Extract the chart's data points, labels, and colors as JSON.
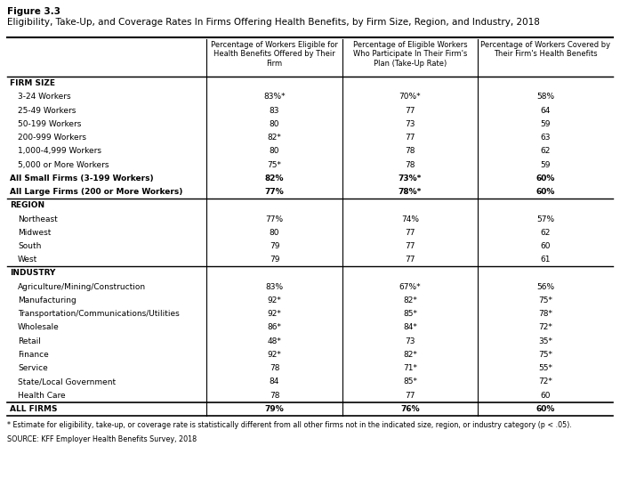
{
  "figure_label": "Figure 3.3",
  "title": "Eligibility, Take-Up, and Coverage Rates In Firms Offering Health Benefits, by Firm Size, Region, and Industry, 2018",
  "col_headers": [
    "Percentage of Workers Eligible for\nHealth Benefits Offered by Their\nFirm",
    "Percentage of Eligible Workers\nWho Participate In Their Firm's\nPlan (Take-Up Rate)",
    "Percentage of Workers Covered by\nTheir Firm's Health Benefits"
  ],
  "sections": [
    {
      "header": "FIRM SIZE",
      "rows": [
        {
          "label": "3-24 Workers",
          "indent": true,
          "bold": false,
          "col1": "83%*",
          "col2": "70%*",
          "col3": "58%"
        },
        {
          "label": "25-49 Workers",
          "indent": true,
          "bold": false,
          "col1": "83",
          "col2": "77",
          "col3": "64"
        },
        {
          "label": "50-199 Workers",
          "indent": true,
          "bold": false,
          "col1": "80",
          "col2": "73",
          "col3": "59"
        },
        {
          "label": "200-999 Workers",
          "indent": true,
          "bold": false,
          "col1": "82*",
          "col2": "77",
          "col3": "63"
        },
        {
          "label": "1,000-4,999 Workers",
          "indent": true,
          "bold": false,
          "col1": "80",
          "col2": "78",
          "col3": "62"
        },
        {
          "label": "5,000 or More Workers",
          "indent": true,
          "bold": false,
          "col1": "75*",
          "col2": "78",
          "col3": "59"
        },
        {
          "label": "All Small Firms (3-199 Workers)",
          "indent": false,
          "bold": true,
          "col1": "82%",
          "col2": "73%*",
          "col3": "60%"
        },
        {
          "label": "All Large Firms (200 or More Workers)",
          "indent": false,
          "bold": true,
          "col1": "77%",
          "col2": "78%*",
          "col3": "60%"
        }
      ]
    },
    {
      "header": "REGION",
      "rows": [
        {
          "label": "Northeast",
          "indent": true,
          "bold": false,
          "col1": "77%",
          "col2": "74%",
          "col3": "57%"
        },
        {
          "label": "Midwest",
          "indent": true,
          "bold": false,
          "col1": "80",
          "col2": "77",
          "col3": "62"
        },
        {
          "label": "South",
          "indent": true,
          "bold": false,
          "col1": "79",
          "col2": "77",
          "col3": "60"
        },
        {
          "label": "West",
          "indent": true,
          "bold": false,
          "col1": "79",
          "col2": "77",
          "col3": "61"
        }
      ]
    },
    {
      "header": "INDUSTRY",
      "rows": [
        {
          "label": "Agriculture/Mining/Construction",
          "indent": true,
          "bold": false,
          "col1": "83%",
          "col2": "67%*",
          "col3": "56%"
        },
        {
          "label": "Manufacturing",
          "indent": true,
          "bold": false,
          "col1": "92*",
          "col2": "82*",
          "col3": "75*"
        },
        {
          "label": "Transportation/Communications/Utilities",
          "indent": true,
          "bold": false,
          "col1": "92*",
          "col2": "85*",
          "col3": "78*"
        },
        {
          "label": "Wholesale",
          "indent": true,
          "bold": false,
          "col1": "86*",
          "col2": "84*",
          "col3": "72*"
        },
        {
          "label": "Retail",
          "indent": true,
          "bold": false,
          "col1": "48*",
          "col2": "73",
          "col3": "35*"
        },
        {
          "label": "Finance",
          "indent": true,
          "bold": false,
          "col1": "92*",
          "col2": "82*",
          "col3": "75*"
        },
        {
          "label": "Service",
          "indent": true,
          "bold": false,
          "col1": "78",
          "col2": "71*",
          "col3": "55*"
        },
        {
          "label": "State/Local Government",
          "indent": true,
          "bold": false,
          "col1": "84",
          "col2": "85*",
          "col3": "72*"
        },
        {
          "label": "Health Care",
          "indent": true,
          "bold": false,
          "col1": "78",
          "col2": "77",
          "col3": "60"
        }
      ]
    }
  ],
  "all_firms_row": {
    "label": "ALL FIRMS",
    "bold": true,
    "col1": "79%",
    "col2": "76%",
    "col3": "60%"
  },
  "footnote": "* Estimate for eligibility, take-up, or coverage rate is statistically different from all other firms not in the indicated size, region, or industry category (p < .05).",
  "source": "SOURCE: KFF Employer Health Benefits Survey, 2018",
  "bg_color": "#ffffff",
  "text_color": "#000000",
  "border_color": "#000000"
}
